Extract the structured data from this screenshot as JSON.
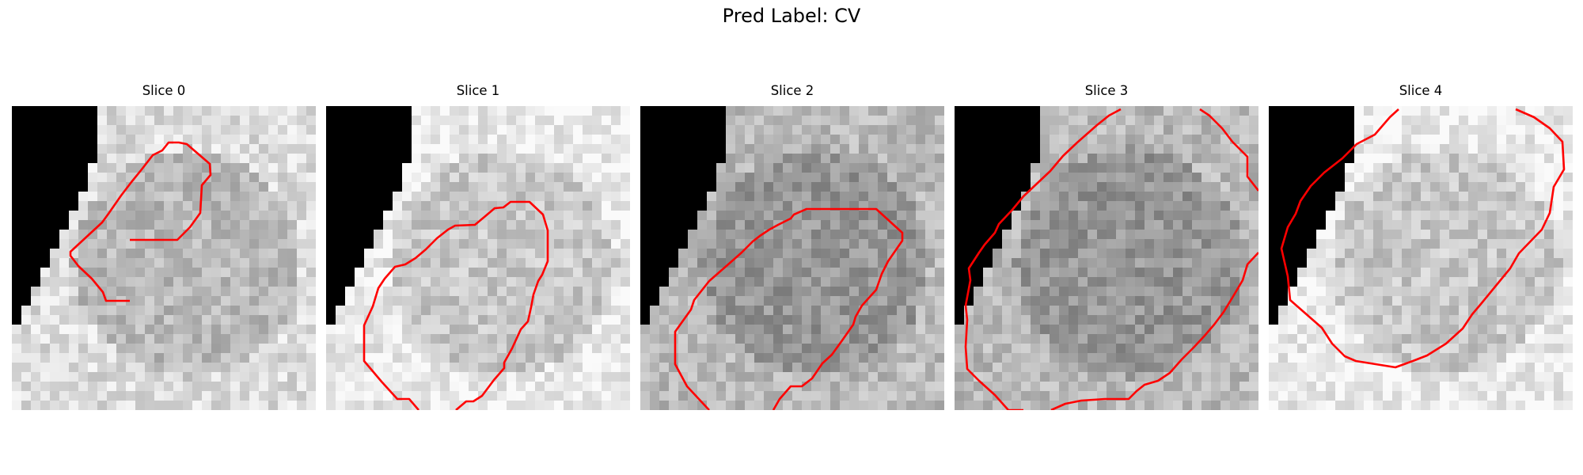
{
  "figure": {
    "title": "Pred Label: CV",
    "panels": [
      {
        "title": "Slice 0",
        "mean": 185,
        "contour_stroke": "#ff0000"
      },
      {
        "title": "Slice 1",
        "mean": 200,
        "contour_stroke": "#ff0000"
      },
      {
        "title": "Slice 2",
        "mean": 150,
        "contour_stroke": "#ff0000"
      },
      {
        "title": "Slice 3",
        "mean": 150,
        "contour_stroke": "#ff0000"
      },
      {
        "title": "Slice 4",
        "mean": 200,
        "contour_stroke": "#ff0000"
      }
    ]
  }
}
